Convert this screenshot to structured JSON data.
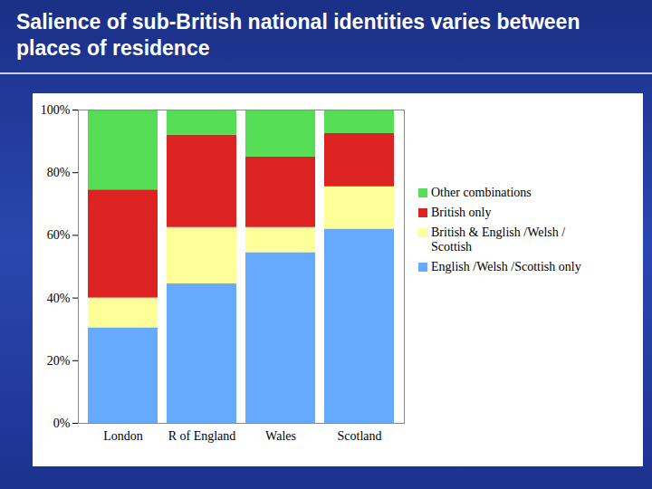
{
  "chart_data": {
    "type": "bar",
    "stacked": true,
    "title": "Salience of sub-British national identities varies between places of residence",
    "categories": [
      "London",
      "R of England",
      "Wales",
      "Scotland"
    ],
    "series": [
      {
        "name": "English /Welsh /Scottish only",
        "color": "#66aaff",
        "values": [
          30.5,
          44.5,
          54.5,
          62
        ]
      },
      {
        "name": "British & English /Welsh / Scottish",
        "color": "#ffff99",
        "values": [
          9.5,
          18,
          8,
          13.5
        ]
      },
      {
        "name": "British only",
        "color": "#dd2222",
        "values": [
          34.5,
          29.5,
          22.5,
          17
        ]
      },
      {
        "name": "Other combinations",
        "color": "#55dd55",
        "values": [
          25.5,
          8,
          15,
          7.5
        ]
      }
    ],
    "ylim": [
      0,
      100
    ],
    "yticks": [
      {
        "value": 0,
        "label": "0%"
      },
      {
        "value": 20,
        "label": "20%"
      },
      {
        "value": 40,
        "label": "40%"
      },
      {
        "value": 60,
        "label": "60%"
      },
      {
        "value": 80,
        "label": "80%"
      },
      {
        "value": 100,
        "label": "100%"
      }
    ],
    "legend": "right"
  }
}
